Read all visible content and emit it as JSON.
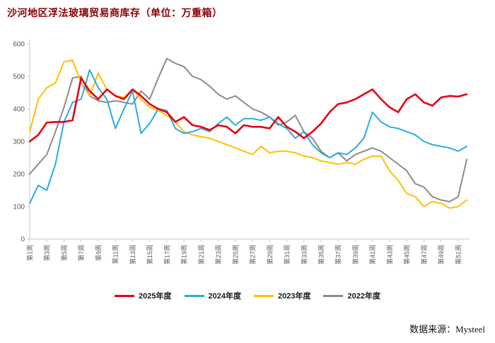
{
  "header": {
    "title": "沙河地区浮法玻璃贸易商库存（单位：万重箱）"
  },
  "footer": {
    "source": "数据来源：Mysteel"
  },
  "chart_data": {
    "type": "line",
    "title": "沙河地区浮法玻璃贸易商库存（单位：万重箱）",
    "title_color": "#8b0000",
    "ylim": [
      0,
      600
    ],
    "y_ticks": [
      0,
      100,
      200,
      300,
      400,
      500,
      600
    ],
    "grid": false,
    "legend_position": "bottom",
    "x_count": 52,
    "x_tick_labels": [
      "第1周",
      "第3周",
      "第5周",
      "第7周",
      "第9周",
      "第11周",
      "第13周",
      "第15周",
      "第17周",
      "第19周",
      "第21周",
      "第23周",
      "第25周",
      "第27周",
      "第29周",
      "第31周",
      "第33周",
      "第35周",
      "第37周",
      "第39周",
      "第41周",
      "第43周",
      "第45周",
      "第47周",
      "第49周",
      "第51周"
    ],
    "series": [
      {
        "name": "2025年度",
        "color": "#e60012",
        "values": [
          300,
          320,
          358,
          360,
          360,
          365,
          495,
          455,
          430,
          460,
          440,
          430,
          460,
          440,
          415,
          400,
          390,
          360,
          375,
          350,
          345,
          335,
          350,
          345,
          325,
          350,
          345,
          345,
          340,
          375,
          345,
          330,
          310,
          330,
          355,
          390,
          415,
          420,
          430,
          445,
          460,
          430,
          405,
          390,
          430,
          445,
          420,
          410,
          435,
          440,
          438,
          445
        ]
      },
      {
        "name": "2024年度",
        "color": "#29abe2",
        "values": [
          110,
          165,
          150,
          230,
          360,
          420,
          430,
          520,
          465,
          430,
          340,
          400,
          455,
          325,
          355,
          400,
          395,
          340,
          325,
          330,
          340,
          330,
          355,
          375,
          350,
          370,
          370,
          365,
          375,
          355,
          340,
          310,
          330,
          290,
          265,
          250,
          265,
          260,
          280,
          310,
          390,
          360,
          345,
          340,
          330,
          320,
          300,
          290,
          285,
          280,
          270,
          285
        ]
      },
      {
        "name": "2023年度",
        "color": "#ffc000",
        "values": [
          330,
          430,
          465,
          480,
          545,
          550,
          480,
          440,
          510,
          460,
          440,
          435,
          460,
          430,
          405,
          395,
          380,
          360,
          330,
          320,
          315,
          310,
          300,
          290,
          280,
          270,
          260,
          285,
          265,
          270,
          270,
          265,
          255,
          250,
          240,
          235,
          230,
          235,
          230,
          245,
          255,
          255,
          210,
          180,
          140,
          130,
          100,
          115,
          110,
          95,
          100,
          120
        ]
      },
      {
        "name": "2022年度",
        "color": "#8c8c8c",
        "values": [
          200,
          230,
          260,
          330,
          405,
          495,
          500,
          440,
          425,
          420,
          425,
          420,
          415,
          455,
          430,
          495,
          555,
          540,
          530,
          500,
          490,
          470,
          445,
          430,
          440,
          420,
          400,
          390,
          375,
          350,
          360,
          380,
          330,
          310,
          270,
          250,
          265,
          240,
          260,
          270,
          280,
          270,
          250,
          230,
          210,
          170,
          160,
          130,
          120,
          115,
          130,
          245
        ]
      }
    ]
  }
}
